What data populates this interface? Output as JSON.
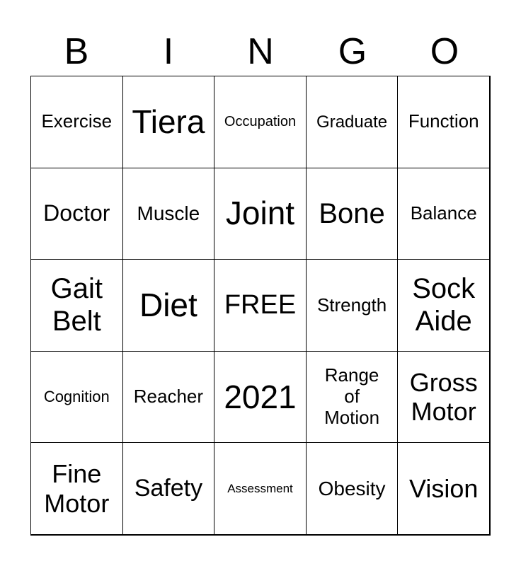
{
  "header": [
    "B",
    "I",
    "N",
    "G",
    "O"
  ],
  "cells": [
    "Exercise",
    "Tiera",
    "Occupation",
    "Graduate",
    "Function",
    "Doctor",
    "Muscle",
    "Joint",
    "Bone",
    "Balance",
    "Gait Belt",
    "Diet",
    "FREE",
    "Strength",
    "Sock Aide",
    "Cognition",
    "Reacher",
    "2021",
    "Range of Motion",
    "Gross Motor",
    "Fine Motor",
    "Safety",
    "Assessment",
    "Obesity",
    "Vision"
  ]
}
